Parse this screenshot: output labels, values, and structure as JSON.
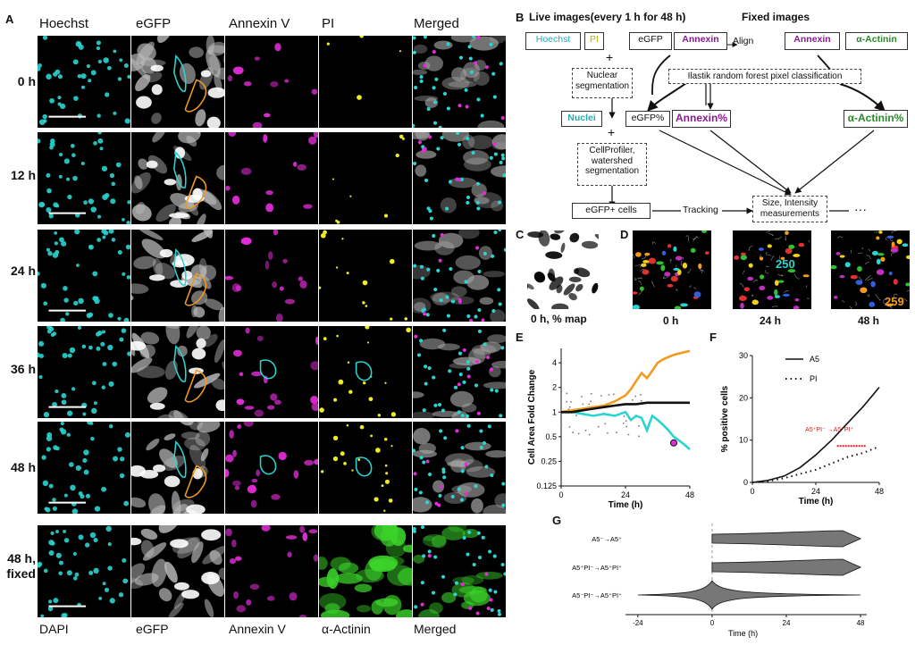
{
  "panelA": {
    "letter": "A",
    "columns": [
      "Hoechst",
      "eGFP",
      "Annexin V",
      "PI",
      "Merged"
    ],
    "rows": [
      "0 h",
      "12 h",
      "24 h",
      "36 h",
      "48 h"
    ],
    "fixed_row_label_1": "48 h,",
    "fixed_row_label_2": "fixed",
    "bottom_columns": [
      "DAPI",
      "eGFP",
      "Annexin V",
      "α-Actinin",
      "Merged"
    ]
  },
  "panelB": {
    "letter": "B",
    "live_header": "Live images(every 1 h for 48 h)",
    "fixed_header": "Fixed images",
    "hoechst": "Hoechst",
    "pi": "PI",
    "egfp": "eGFP",
    "annexin": "Annexin",
    "align": "Align",
    "annexin_fixed": "Annexin",
    "actinin": "α-Actinin",
    "ilastik": "Ilastik random forest pixel classification",
    "nuclear_seg_1": "Nuclear",
    "nuclear_seg_2": "segmentation",
    "nuclei": "Nuclei",
    "egfp_pct": "eGFP%",
    "annexin_pct": "Annexin%",
    "actinin_pct": "α-Actinin%",
    "cellprofiler_1": "CellProfiler,",
    "cellprofiler_2": "watershed",
    "cellprofiler_3": "segmentation",
    "egfp_cells": "eGFP+ cells",
    "tracking": "Tracking",
    "size_1": "Size, Intensity",
    "size_2": "measurements",
    "ellipsis": "···",
    "plus": "+"
  },
  "panelC": {
    "letter": "C",
    "caption": "0 h, % map"
  },
  "panelD": {
    "letter": "D",
    "labels": [
      "0 h",
      "24 h",
      "48 h"
    ],
    "id_a": "250",
    "id_b": "259"
  },
  "panelE": {
    "letter": "E",
    "ylabel": "Cell Area Fold Change",
    "xlabel": "Time (h)",
    "yticks": [
      "4",
      "2",
      "1",
      "0.5",
      "0.25",
      "0.125"
    ],
    "xticks": [
      "0",
      "24",
      "48"
    ]
  },
  "panelF": {
    "letter": "F",
    "ylabel": "% positive cells",
    "xlabel": "Time (h)",
    "yticks": [
      "30",
      "20",
      "10",
      "0"
    ],
    "xticks": [
      "0",
      "24",
      "48"
    ],
    "legend_a5": "A5",
    "legend_pi": "PI",
    "annot": "A5⁺PI⁻ →A5⁺PI⁺"
  },
  "panelG": {
    "letter": "G",
    "rows": [
      "A5⁻→A5⁺",
      "A5⁺PI⁻→A5⁺PI⁺",
      "A5⁻PI⁻→A5⁺PI⁺"
    ],
    "xticks": [
      "-24",
      "0",
      "24",
      "48"
    ],
    "xlabel": "Time (h)"
  },
  "chart_data": [
    {
      "type": "line",
      "panel": "E",
      "ylabel": "Cell Area Fold Change",
      "xlabel": "Time (h)",
      "yscale": "log2",
      "ylim": [
        0.125,
        6
      ],
      "xlim": [
        0,
        48
      ],
      "series": [
        {
          "color": "#f39a1f",
          "x": [
            0,
            4,
            8,
            12,
            16,
            20,
            24,
            26,
            28,
            30,
            32,
            34,
            36,
            38,
            40,
            42,
            44,
            46,
            48
          ],
          "y": [
            1.0,
            1.05,
            1.1,
            1.15,
            1.2,
            1.35,
            1.6,
            1.9,
            2.4,
            3.0,
            2.6,
            3.2,
            4.0,
            4.4,
            4.7,
            5.0,
            5.2,
            5.4,
            5.6
          ]
        },
        {
          "color": "#2ad4d0",
          "x": [
            0,
            4,
            8,
            12,
            16,
            20,
            24,
            26,
            28,
            30,
            32,
            34,
            36,
            38,
            40,
            42,
            44,
            46,
            48
          ],
          "y": [
            1.0,
            1.0,
            0.95,
            0.9,
            0.95,
            0.9,
            1.0,
            0.8,
            0.9,
            0.85,
            0.6,
            0.9,
            0.8,
            0.7,
            0.6,
            0.5,
            0.45,
            0.4,
            0.35
          ]
        },
        {
          "color": "#111111",
          "x": [
            0,
            4,
            8,
            12,
            16,
            20,
            24,
            28,
            32,
            36,
            40,
            44,
            48
          ],
          "y": [
            1.0,
            1.0,
            1.05,
            1.1,
            1.15,
            1.2,
            1.25,
            1.25,
            1.3,
            1.3,
            1.3,
            1.3,
            1.3
          ]
        }
      ]
    },
    {
      "type": "line",
      "panel": "F",
      "ylabel": "% positive cells",
      "xlabel": "Time (h)",
      "ylim": [
        0,
        30
      ],
      "xlim": [
        0,
        48
      ],
      "series": [
        {
          "name": "A5",
          "style": "solid",
          "x": [
            0,
            6,
            12,
            18,
            24,
            30,
            36,
            42,
            48
          ],
          "y": [
            0,
            0.5,
            1.5,
            3.5,
            6.5,
            10,
            14,
            18,
            22.5
          ]
        },
        {
          "name": "PI",
          "style": "dotted",
          "x": [
            0,
            6,
            12,
            18,
            24,
            30,
            36,
            42,
            48
          ],
          "y": [
            0,
            0.3,
            1,
            2,
            3,
            4.5,
            6,
            7,
            8.5
          ]
        }
      ]
    },
    {
      "type": "violin",
      "panel": "G",
      "xlabel": "Time (h)",
      "xlim": [
        -28,
        50
      ],
      "categories": [
        "A5⁻→A5⁺",
        "A5⁺PI⁻→A5⁺PI⁺",
        "A5⁻PI⁻→A5⁺PI⁺"
      ],
      "ranges": [
        [
          0,
          48
        ],
        [
          0,
          48
        ],
        [
          -24,
          48
        ]
      ]
    }
  ],
  "colors": {
    "cyan": "#2ad4d0",
    "orange": "#f39a1f",
    "magenta": "#e22cd8",
    "yellow": "#f0ee20",
    "green": "#3bd22a"
  }
}
